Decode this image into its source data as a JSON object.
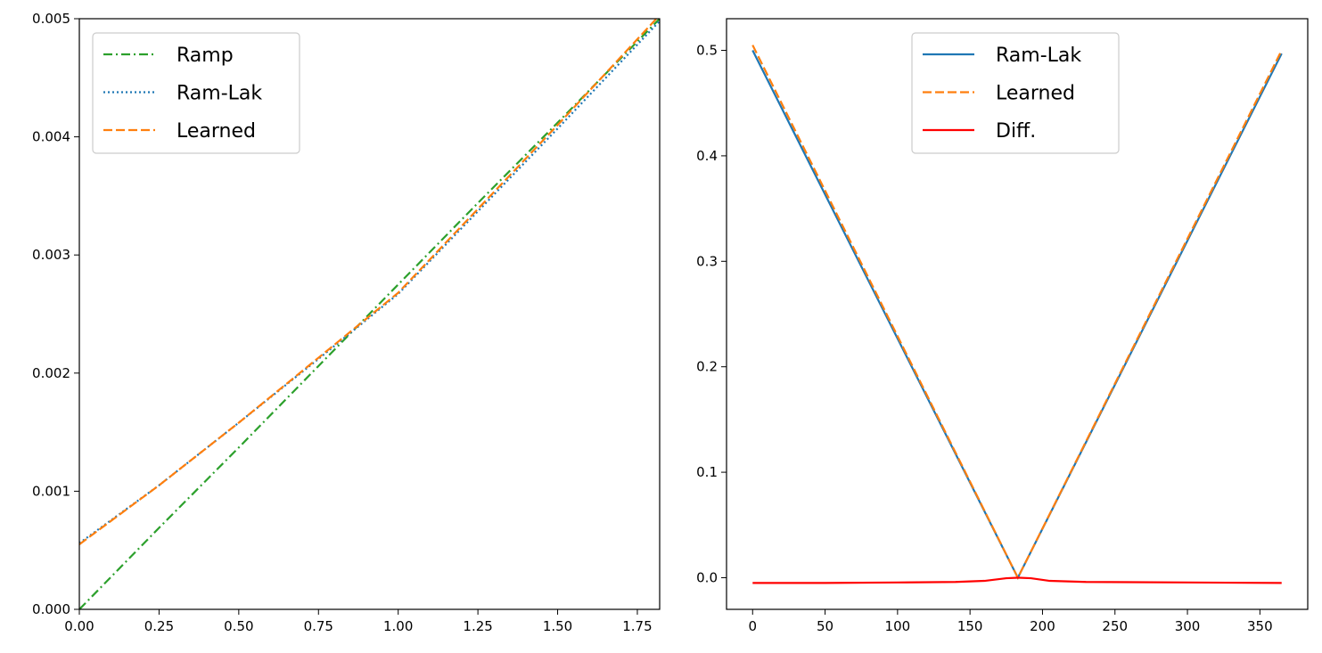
{
  "chart_data": [
    {
      "type": "line",
      "title": "",
      "xlabel": "",
      "ylabel": "",
      "xlim": [
        0,
        1.82
      ],
      "ylim": [
        0,
        0.005
      ],
      "xticks": [
        "0.00",
        "0.25",
        "0.50",
        "0.75",
        "1.00",
        "1.25",
        "1.50",
        "1.75"
      ],
      "yticks": [
        "0.000",
        "0.001",
        "0.002",
        "0.003",
        "0.004",
        "0.005"
      ],
      "grid": false,
      "legend": "upper-left",
      "series": [
        {
          "name": "Ramp",
          "color": "#2ca02c",
          "style": "dashdot",
          "x": [
            0.0,
            0.25,
            0.5,
            0.75,
            1.0,
            1.25,
            1.5,
            1.82
          ],
          "y": [
            0.0,
            0.00069,
            0.00137,
            0.00206,
            0.00275,
            0.00344,
            0.00412,
            0.005
          ]
        },
        {
          "name": "Ram-Lak",
          "color": "#1f77b4",
          "style": "dotted",
          "x": [
            0.0,
            0.25,
            0.5,
            0.75,
            1.0,
            1.25,
            1.5,
            1.82
          ],
          "y": [
            0.00056,
            0.00105,
            0.00158,
            0.00212,
            0.00267,
            0.00337,
            0.00407,
            0.00498
          ]
        },
        {
          "name": "Learned",
          "color": "#ff7f0e",
          "style": "dashed",
          "x": [
            0.0,
            0.25,
            0.5,
            0.75,
            1.0,
            1.25,
            1.5,
            1.82
          ],
          "y": [
            0.00055,
            0.00105,
            0.00158,
            0.00213,
            0.00268,
            0.00339,
            0.0041,
            0.00503
          ]
        }
      ]
    },
    {
      "type": "line",
      "title": "",
      "xlabel": "",
      "ylabel": "",
      "xlim": [
        -18,
        383
      ],
      "ylim": [
        -0.03,
        0.53
      ],
      "xticks": [
        "0",
        "50",
        "100",
        "150",
        "200",
        "250",
        "300",
        "350"
      ],
      "yticks": [
        "0.0",
        "0.1",
        "0.2",
        "0.3",
        "0.4",
        "0.5"
      ],
      "grid": false,
      "legend": "upper-center",
      "series": [
        {
          "name": "Ram-Lak",
          "color": "#1f77b4",
          "style": "solid",
          "x": [
            0,
            183,
            365
          ],
          "y": [
            0.5,
            0.0,
            0.497
          ]
        },
        {
          "name": "Learned",
          "color": "#ff7f0e",
          "style": "dashed",
          "x": [
            0,
            183,
            365
          ],
          "y": [
            0.505,
            0.0,
            0.5
          ]
        },
        {
          "name": "Diff.",
          "color": "#ff0000",
          "style": "solid",
          "x": [
            0,
            50,
            100,
            140,
            160,
            175,
            183,
            192,
            205,
            230,
            300,
            365
          ],
          "y": [
            -0.005,
            -0.005,
            -0.0045,
            -0.004,
            -0.003,
            -0.0005,
            0.0,
            -0.0005,
            -0.003,
            -0.004,
            -0.0045,
            -0.005
          ]
        }
      ]
    }
  ]
}
